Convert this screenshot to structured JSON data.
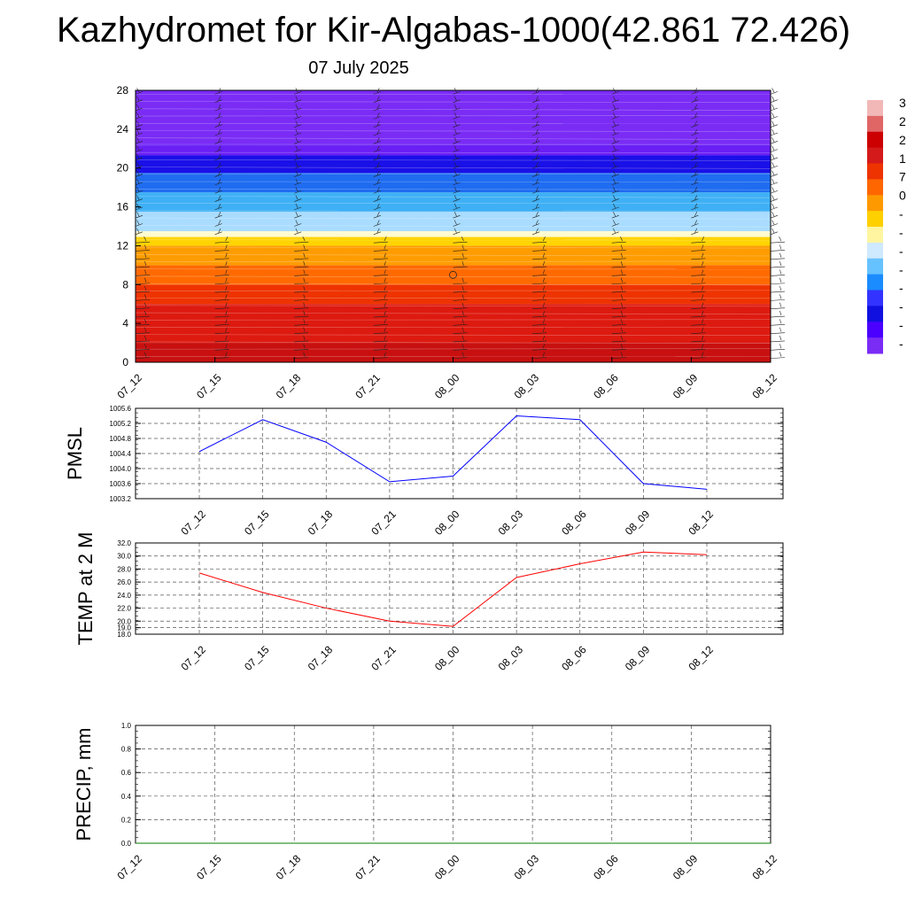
{
  "header": {
    "title": "Kazhydromet for Kir-Algabas-1000(42.861 72.426)",
    "subtitle": "07 July 2025"
  },
  "colors": {
    "pmsl_line": "#0000ff",
    "temp_line": "#ff0000",
    "precip_line": "#008000",
    "grid": "#555555"
  },
  "chart_data": [
    {
      "type": "heatmap",
      "title": "",
      "x_ticks": [
        "07_12",
        "07_15",
        "07_18",
        "07_21",
        "08_00",
        "08_03",
        "08_06",
        "08_09",
        "08_12"
      ],
      "y_ticks": [
        "0",
        "4",
        "8",
        "12",
        "16",
        "20",
        "24",
        "28"
      ],
      "ylim": [
        0,
        28
      ],
      "colorbar_labels": [
        "3",
        "2",
        "2",
        "1",
        "7",
        "0",
        "-",
        "-",
        "-",
        "-",
        "-",
        "-",
        "-",
        "-"
      ],
      "colorbar_colors": [
        "#f2b8b8",
        "#e06666",
        "#cc0000",
        "#d41a1a",
        "#ee3300",
        "#ff6600",
        "#ff9900",
        "#ffd000",
        "#fff5a0",
        "#cfe9ff",
        "#66c2ff",
        "#1a8cff",
        "#3333ff",
        "#1010e0",
        "#4b00ff",
        "#7a2cf5"
      ],
      "color_bands": [
        {
          "from": 0,
          "to": 2,
          "color": "#c81010"
        },
        {
          "from": 2,
          "to": 6,
          "color": "#dd1a10"
        },
        {
          "from": 6,
          "to": 8,
          "color": "#ee3300"
        },
        {
          "from": 8,
          "to": 10,
          "color": "#ff6a00"
        },
        {
          "from": 10,
          "to": 12,
          "color": "#ff9c00"
        },
        {
          "from": 12,
          "to": 12.9,
          "color": "#ffd400"
        },
        {
          "from": 12.9,
          "to": 13.5,
          "color": "#fffbd0"
        },
        {
          "from": 13.5,
          "to": 15.5,
          "color": "#a9dcff"
        },
        {
          "from": 15.5,
          "to": 17.5,
          "color": "#3fb0f5"
        },
        {
          "from": 17.5,
          "to": 19.5,
          "color": "#1f6cf0"
        },
        {
          "from": 19.5,
          "to": 21.3,
          "color": "#1a10e8"
        },
        {
          "from": 21.3,
          "to": 22.5,
          "color": "#6a1ff5"
        },
        {
          "from": 22.5,
          "to": 28,
          "color": "#7a2cf5"
        }
      ]
    },
    {
      "type": "line",
      "ylabel": "PMSL",
      "ylim": [
        1003.2,
        1005.6
      ],
      "y_ticks": [
        "1003.2",
        "1003.6",
        "1004.0",
        "1004.4",
        "1004.8",
        "1005.2",
        "1005.6"
      ],
      "categories": [
        "07_12",
        "07_15",
        "07_18",
        "07_21",
        "08_00",
        "08_03",
        "08_06",
        "08_09",
        "08_12"
      ],
      "series": [
        {
          "values": [
            1004.45,
            1005.3,
            1004.7,
            1003.65,
            1003.8,
            1005.4,
            1005.3,
            1003.6,
            1003.45
          ]
        }
      ]
    },
    {
      "type": "line",
      "ylabel": "TEMP at 2 M",
      "ylim": [
        18.0,
        32.0
      ],
      "y_ticks": [
        "18.0",
        "19.0",
        "20.0",
        "22.0",
        "24.0",
        "26.0",
        "28.0",
        "30.0",
        "32.0"
      ],
      "categories": [
        "07_12",
        "07_15",
        "07_18",
        "07_21",
        "08_00",
        "08_03",
        "08_06",
        "08_09",
        "08_12"
      ],
      "series": [
        {
          "values": [
            27.4,
            24.4,
            22.0,
            20.0,
            19.2,
            26.7,
            28.8,
            30.6,
            30.2
          ]
        }
      ]
    },
    {
      "type": "line",
      "ylabel": "PRECIP, mm",
      "ylim": [
        0.0,
        1.0
      ],
      "y_ticks": [
        "0.0",
        "0.2",
        "0.4",
        "0.6",
        "0.8",
        "1.0"
      ],
      "categories": [
        "07_12",
        "07_15",
        "07_18",
        "07_21",
        "08_00",
        "08_03",
        "08_06",
        "08_09",
        "08_12"
      ],
      "series": [
        {
          "values": [
            0,
            0,
            0,
            0,
            0,
            0,
            0,
            0,
            0
          ]
        }
      ]
    }
  ]
}
